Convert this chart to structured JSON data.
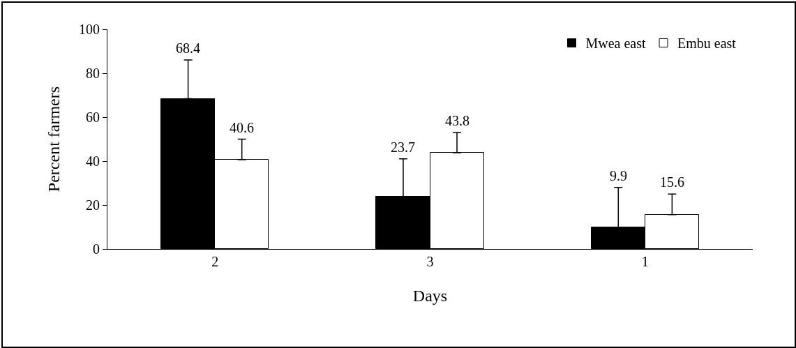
{
  "chart_data": {
    "type": "bar",
    "xlabel": "Days",
    "ylabel": "Percent farmers",
    "categories": [
      "2",
      "3",
      "1"
    ],
    "series": [
      {
        "name": "Mwea east",
        "color": "#000000",
        "values": [
          68.4,
          23.7,
          9.9
        ],
        "errors": [
          [
            68.4,
            86
          ],
          [
            23.7,
            41
          ],
          [
            9.9,
            28
          ]
        ]
      },
      {
        "name": "Embu east",
        "color": "#ffffff",
        "values": [
          40.6,
          43.8,
          15.6
        ],
        "errors": [
          [
            40.6,
            50
          ],
          [
            43.8,
            53
          ],
          [
            15.6,
            25
          ]
        ]
      }
    ],
    "ylim": [
      0,
      100
    ],
    "yticks": [
      0,
      20,
      40,
      60,
      80,
      100
    ],
    "grid": false,
    "legend": "top right",
    "data_labels": true
  }
}
